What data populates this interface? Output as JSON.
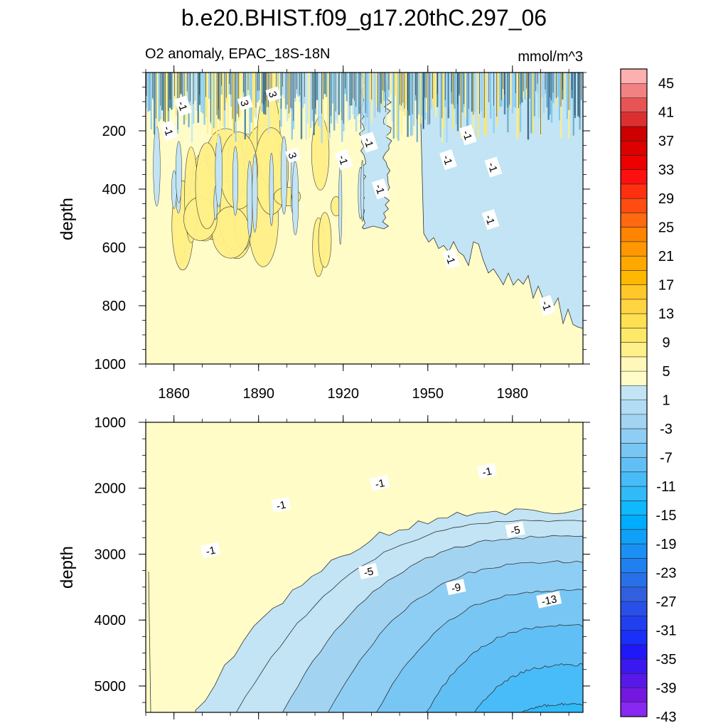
{
  "title": "b.e20.BHIST.f09_g17.20thC.297_06",
  "chart_data": [
    {
      "type": "heatmap",
      "subtitle": "O2 anomaly, EPAC_18S-18N",
      "units": "mmol/m^3",
      "ylabel": "depth",
      "xlim": [
        1850,
        2005
      ],
      "ylim": [
        0,
        1000
      ],
      "y_reversed": true,
      "xticks": [
        1860,
        1890,
        1920,
        1950,
        1980
      ],
      "yticks": [
        200,
        400,
        600,
        800,
        1000
      ],
      "contour_labels": [
        {
          "text": "-1",
          "x": 1863,
          "y": 115
        },
        {
          "text": "-1",
          "x": 1858,
          "y": 200
        },
        {
          "text": "3",
          "x": 1885,
          "y": 105
        },
        {
          "text": "3",
          "x": 1895,
          "y": 75
        },
        {
          "text": "3",
          "x": 1902,
          "y": 285
        },
        {
          "text": "-1",
          "x": 1920,
          "y": 300
        },
        {
          "text": "-1",
          "x": 1929,
          "y": 240
        },
        {
          "text": "-1",
          "x": 1933,
          "y": 400
        },
        {
          "text": "-1",
          "x": 1957,
          "y": 300
        },
        {
          "text": "-1",
          "x": 1964,
          "y": 215
        },
        {
          "text": "-1",
          "x": 1973,
          "y": 325
        },
        {
          "text": "-1",
          "x": 1972,
          "y": 505
        },
        {
          "text": "-1",
          "x": 1958,
          "y": 640
        },
        {
          "text": "-1",
          "x": 1992,
          "y": 800
        }
      ]
    },
    {
      "type": "heatmap",
      "ylabel": "depth",
      "xlim": [
        1850,
        2005
      ],
      "ylim": [
        1000,
        5400
      ],
      "y_reversed": true,
      "xticks": [
        1860,
        1890,
        1920,
        1950,
        1980
      ],
      "yticks": [
        1000,
        2000,
        3000,
        4000,
        5000
      ],
      "contour_labels": [
        {
          "text": "-1",
          "x": 1873,
          "y": 2950
        },
        {
          "text": "-1",
          "x": 1898,
          "y": 2260
        },
        {
          "text": "-1",
          "x": 1933,
          "y": 1930
        },
        {
          "text": "-1",
          "x": 1971,
          "y": 1750
        },
        {
          "text": "-5",
          "x": 1929,
          "y": 3270
        },
        {
          "text": "-5",
          "x": 1981,
          "y": 2640
        },
        {
          "text": "-9",
          "x": 1960,
          "y": 3510
        },
        {
          "text": "-13",
          "x": 1993,
          "y": 3700
        }
      ]
    }
  ],
  "colorbar": {
    "labels": [
      "45",
      "41",
      "37",
      "33",
      "29",
      "25",
      "21",
      "17",
      "13",
      "9",
      "5",
      "1",
      "-3",
      "-7",
      "-11",
      "-15",
      "-19",
      "-23",
      "-27",
      "-31",
      "-35",
      "-39",
      "-43"
    ],
    "colors": [
      "#fdb0b0",
      "#f28282",
      "#e85454",
      "#dc3030",
      "#cc0000",
      "#dc0000",
      "#ec0000",
      "#ff1010",
      "#ff3010",
      "#ff4c10",
      "#ff6a10",
      "#ff8400",
      "#ff9800",
      "#ffa800",
      "#ffb800",
      "#ffc828",
      "#ffd440",
      "#ffe050",
      "#fee868",
      "#fff088",
      "#fff8b8",
      "#fffcc8",
      "#c2e4f4",
      "#b2dcf4",
      "#a2d4f2",
      "#8ecef4",
      "#78c6f4",
      "#60c0f6",
      "#48bcf8",
      "#30baf8",
      "#10b8fc",
      "#00acfc",
      "#10a0f8",
      "#1a90f4",
      "#2080f0",
      "#2870e8",
      "#3060e0",
      "#2850e8",
      "#2040f0",
      "#1830f8",
      "#2018f8",
      "#3c18f0",
      "#5818e8",
      "#7418e0",
      "#8828f0"
    ]
  },
  "colors": {
    "pos1": "#fffcc8",
    "pos2": "#fff088",
    "neg1": "#c2e4f4",
    "neg2": "#a2d4f2",
    "neg3": "#8ecef4",
    "neg4": "#78c6f4",
    "neg5": "#60c0f6",
    "neg6": "#48bcf8",
    "neg7": "#30baf8",
    "neg8": "#10b8fc"
  }
}
